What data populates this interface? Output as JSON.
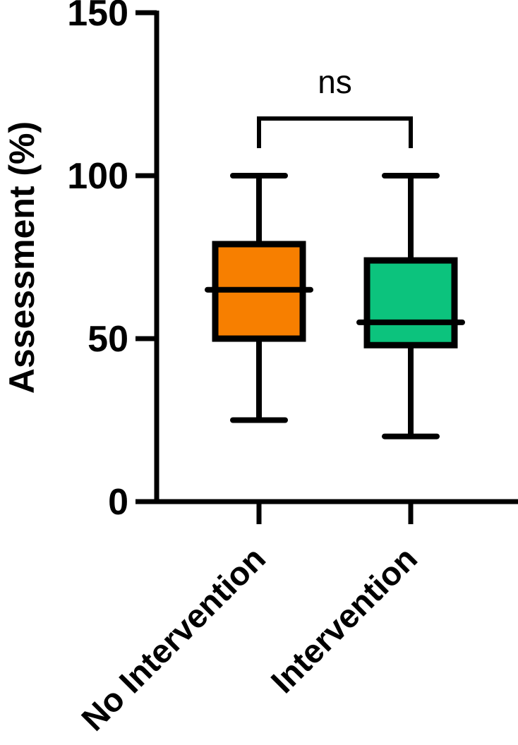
{
  "chart_data": {
    "type": "box",
    "ylabel": "Assessment (%)",
    "ylim": [
      0,
      150
    ],
    "yticks": [
      0,
      50,
      100,
      150
    ],
    "categories": [
      "No Intervention",
      "Intervention"
    ],
    "boxes": [
      {
        "category": "No Intervention",
        "min": 25,
        "q1": 50,
        "median": 65,
        "q3": 79,
        "max": 100,
        "color": "#f77f00"
      },
      {
        "category": "Intervention",
        "min": 20,
        "q1": 48,
        "median": 55,
        "q3": 74,
        "max": 100,
        "color": "#0cc37d"
      }
    ],
    "comparison": {
      "between": [
        "No Intervention",
        "Intervention"
      ],
      "label": "ns"
    }
  }
}
